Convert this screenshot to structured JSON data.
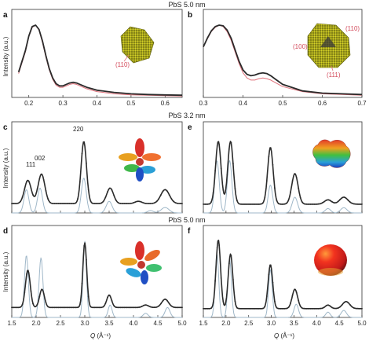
{
  "figure": {
    "row_titles": [
      "PbS 5.0 nm",
      "PbS 3.2 nm",
      "PbS 5.0 nm"
    ],
    "y_label": "Intensity (a.u.)",
    "x_label": "Q (Å⁻¹)",
    "x_label_italic": "Q",
    "x_label_rest": " (Å⁻¹)",
    "colors": {
      "experiment": "#2b2b2b",
      "model_top": "#e0707a",
      "model_bottom": "#9fb7c8",
      "inset_red": "#d34a5b"
    }
  },
  "chart_data": [
    {
      "panel": "a",
      "type": "line",
      "title": "",
      "xlabel": "",
      "ylabel": "Intensity (a.u.)",
      "xlim": [
        0.15,
        0.65
      ],
      "x_ticks": [
        0.2,
        0.3,
        0.4,
        0.5,
        0.6
      ],
      "x_tick_labels": [
        "0.2",
        "0.3",
        "0.4",
        "0.5",
        "0.6"
      ],
      "inset_labels": [
        "(110)"
      ],
      "series": [
        {
          "role": "experiment",
          "color": "#2b2b2b",
          "x": [
            0.17,
            0.19,
            0.2,
            0.21,
            0.22,
            0.23,
            0.24,
            0.25,
            0.26,
            0.27,
            0.28,
            0.29,
            0.3,
            0.31,
            0.32,
            0.33,
            0.34,
            0.35,
            0.37,
            0.4,
            0.45,
            0.5,
            0.55,
            0.6,
            0.65
          ],
          "y": [
            0.35,
            0.65,
            0.85,
            0.98,
            1.0,
            0.94,
            0.78,
            0.58,
            0.4,
            0.27,
            0.19,
            0.16,
            0.16,
            0.18,
            0.2,
            0.21,
            0.2,
            0.18,
            0.14,
            0.1,
            0.07,
            0.05,
            0.04,
            0.035,
            0.03
          ]
        },
        {
          "role": "model",
          "color": "#e0707a",
          "x": [
            0.17,
            0.19,
            0.2,
            0.21,
            0.22,
            0.23,
            0.24,
            0.25,
            0.26,
            0.27,
            0.28,
            0.29,
            0.3,
            0.31,
            0.32,
            0.33,
            0.34,
            0.35,
            0.37,
            0.4,
            0.45,
            0.5,
            0.55,
            0.6,
            0.65
          ],
          "y": [
            0.33,
            0.63,
            0.84,
            0.97,
            1.0,
            0.93,
            0.76,
            0.56,
            0.38,
            0.25,
            0.17,
            0.14,
            0.14,
            0.16,
            0.18,
            0.19,
            0.18,
            0.16,
            0.12,
            0.08,
            0.05,
            0.035,
            0.03,
            0.025,
            0.02
          ]
        }
      ]
    },
    {
      "panel": "b",
      "type": "line",
      "title": "",
      "xlabel": "",
      "ylabel": "",
      "xlim": [
        0.3,
        0.7
      ],
      "x_ticks": [
        0.3,
        0.4,
        0.5,
        0.6,
        0.7
      ],
      "x_tick_labels": [
        "0.3",
        "0.4",
        "0.5",
        "0.6",
        "0.7"
      ],
      "inset_labels": [
        "(110)",
        "(100)",
        "(111)"
      ],
      "series": [
        {
          "role": "experiment",
          "color": "#2b2b2b",
          "x": [
            0.3,
            0.31,
            0.32,
            0.33,
            0.34,
            0.35,
            0.36,
            0.37,
            0.38,
            0.39,
            0.4,
            0.41,
            0.42,
            0.43,
            0.44,
            0.45,
            0.46,
            0.47,
            0.48,
            0.5,
            0.55,
            0.6,
            0.65,
            0.7
          ],
          "y": [
            0.7,
            0.82,
            0.92,
            0.98,
            1.0,
            0.99,
            0.93,
            0.82,
            0.66,
            0.5,
            0.38,
            0.32,
            0.3,
            0.31,
            0.33,
            0.34,
            0.33,
            0.3,
            0.26,
            0.18,
            0.09,
            0.06,
            0.05,
            0.04
          ]
        },
        {
          "role": "model",
          "color": "#e0707a",
          "x": [
            0.3,
            0.31,
            0.32,
            0.33,
            0.34,
            0.35,
            0.36,
            0.37,
            0.38,
            0.39,
            0.4,
            0.41,
            0.42,
            0.43,
            0.44,
            0.45,
            0.46,
            0.47,
            0.48,
            0.5,
            0.55,
            0.6,
            0.65,
            0.7
          ],
          "y": [
            0.7,
            0.81,
            0.91,
            0.97,
            1.0,
            0.98,
            0.91,
            0.79,
            0.63,
            0.47,
            0.34,
            0.27,
            0.24,
            0.24,
            0.26,
            0.27,
            0.26,
            0.24,
            0.21,
            0.15,
            0.08,
            0.05,
            0.04,
            0.03
          ]
        }
      ]
    },
    {
      "panel": "c",
      "type": "line",
      "title": "",
      "xlabel": "",
      "ylabel": "Intensity (a.u.)",
      "xlim": [
        1.5,
        5.0
      ],
      "x_ticks": [
        1.5,
        2.0,
        2.5,
        3.0,
        3.5,
        4.0,
        4.5,
        5.0
      ],
      "x_tick_labels": [],
      "peak_labels": [
        {
          "text": "111",
          "x": 1.72
        },
        {
          "text": "002",
          "x": 2.1
        },
        {
          "text": "220",
          "x": 3.0
        }
      ],
      "series": [
        {
          "role": "experiment",
          "color": "#2b2b2b",
          "baseline": 0.12,
          "peaks": [
            {
              "c": 1.83,
              "h": 0.3,
              "w": 0.07
            },
            {
              "c": 2.11,
              "h": 0.38,
              "w": 0.07
            },
            {
              "c": 2.98,
              "h": 0.8,
              "w": 0.055
            },
            {
              "c": 3.52,
              "h": 0.2,
              "w": 0.07
            },
            {
              "c": 4.1,
              "h": 0.03,
              "w": 0.07
            },
            {
              "c": 4.65,
              "h": 0.18,
              "w": 0.09
            }
          ]
        },
        {
          "role": "model",
          "color": "#9fb7c8",
          "baseline": 0.0,
          "peaks": [
            {
              "c": 1.8,
              "h": 0.3,
              "w": 0.05
            },
            {
              "c": 2.08,
              "h": 0.32,
              "w": 0.05
            },
            {
              "c": 2.98,
              "h": 0.45,
              "w": 0.05
            },
            {
              "c": 3.5,
              "h": 0.15,
              "w": 0.06
            },
            {
              "c": 4.35,
              "h": 0.03,
              "w": 0.06
            },
            {
              "c": 4.65,
              "h": 0.07,
              "w": 0.08
            }
          ]
        }
      ]
    },
    {
      "panel": "e",
      "type": "line",
      "title": "",
      "xlabel": "",
      "ylabel": "",
      "xlim": [
        1.5,
        5.0
      ],
      "x_ticks": [
        1.5,
        2.0,
        2.5,
        3.0,
        3.5,
        4.0,
        4.5,
        5.0
      ],
      "x_tick_labels": [],
      "series": [
        {
          "role": "experiment",
          "color": "#2b2b2b",
          "baseline": 0.1,
          "peaks": [
            {
              "c": 1.83,
              "h": 0.72,
              "w": 0.06
            },
            {
              "c": 2.1,
              "h": 0.72,
              "w": 0.06
            },
            {
              "c": 2.98,
              "h": 0.65,
              "w": 0.06
            },
            {
              "c": 3.52,
              "h": 0.35,
              "w": 0.07
            },
            {
              "c": 4.25,
              "h": 0.05,
              "w": 0.08
            },
            {
              "c": 4.6,
              "h": 0.08,
              "w": 0.09
            }
          ]
        },
        {
          "role": "model",
          "color": "#9fb7c8",
          "baseline": 0.0,
          "peaks": [
            {
              "c": 1.8,
              "h": 0.6,
              "w": 0.05
            },
            {
              "c": 2.08,
              "h": 0.6,
              "w": 0.05
            },
            {
              "c": 2.98,
              "h": 0.32,
              "w": 0.05
            },
            {
              "c": 3.52,
              "h": 0.18,
              "w": 0.06
            },
            {
              "c": 4.25,
              "h": 0.05,
              "w": 0.06
            },
            {
              "c": 4.6,
              "h": 0.06,
              "w": 0.07
            }
          ]
        }
      ]
    },
    {
      "panel": "d",
      "type": "line",
      "title": "",
      "xlabel": "Q (Å⁻¹)",
      "ylabel": "Intensity (a.u.)",
      "xlim": [
        1.5,
        5.0
      ],
      "x_ticks": [
        1.5,
        2.0,
        2.5,
        3.0,
        3.5,
        4.0,
        4.5,
        5.0
      ],
      "x_tick_labels": [
        "1.5",
        "2.0",
        "2.5",
        "3.0",
        "3.5",
        "4.0",
        "4.5",
        "5.0"
      ],
      "series": [
        {
          "role": "experiment",
          "color": "#2b2b2b",
          "baseline": 0.12,
          "peaks": [
            {
              "c": 1.83,
              "h": 0.45,
              "w": 0.05
            },
            {
              "c": 2.12,
              "h": 0.22,
              "w": 0.05
            },
            {
              "c": 3.0,
              "h": 0.78,
              "w": 0.04
            },
            {
              "c": 3.5,
              "h": 0.15,
              "w": 0.05
            },
            {
              "c": 4.25,
              "h": 0.03,
              "w": 0.06
            },
            {
              "c": 4.65,
              "h": 0.1,
              "w": 0.07
            }
          ]
        },
        {
          "role": "model",
          "color": "#9fb7c8",
          "baseline": 0.0,
          "peaks": [
            {
              "c": 1.8,
              "h": 0.75,
              "w": 0.04
            },
            {
              "c": 2.1,
              "h": 0.72,
              "w": 0.04
            },
            {
              "c": 3.0,
              "h": 0.92,
              "w": 0.035
            },
            {
              "c": 3.52,
              "h": 0.15,
              "w": 0.04
            },
            {
              "c": 4.25,
              "h": 0.05,
              "w": 0.05
            },
            {
              "c": 4.7,
              "h": 0.12,
              "w": 0.05
            }
          ]
        }
      ]
    },
    {
      "panel": "f",
      "type": "line",
      "title": "",
      "xlabel": "Q (Å⁻¹)",
      "ylabel": "",
      "xlim": [
        1.5,
        5.0
      ],
      "x_ticks": [
        1.5,
        2.0,
        2.5,
        3.0,
        3.5,
        4.0,
        4.5,
        5.0
      ],
      "x_tick_labels": [
        "1.5",
        "2.0",
        "2.5",
        "3.0",
        "3.5",
        "4.0",
        "4.5",
        "5.0"
      ],
      "series": [
        {
          "role": "experiment",
          "color": "#2b2b2b",
          "baseline": 0.1,
          "peaks": [
            {
              "c": 1.83,
              "h": 0.78,
              "w": 0.05
            },
            {
              "c": 2.1,
              "h": 0.62,
              "w": 0.05
            },
            {
              "c": 2.98,
              "h": 0.5,
              "w": 0.05
            },
            {
              "c": 3.52,
              "h": 0.22,
              "w": 0.06
            },
            {
              "c": 4.25,
              "h": 0.04,
              "w": 0.06
            },
            {
              "c": 4.65,
              "h": 0.08,
              "w": 0.08
            }
          ]
        },
        {
          "role": "model",
          "color": "#9fb7c8",
          "baseline": 0.0,
          "peaks": [
            {
              "c": 1.8,
              "h": 0.72,
              "w": 0.04
            },
            {
              "c": 2.08,
              "h": 0.66,
              "w": 0.04
            },
            {
              "c": 2.98,
              "h": 0.55,
              "w": 0.04
            },
            {
              "c": 3.55,
              "h": 0.15,
              "w": 0.05
            },
            {
              "c": 4.25,
              "h": 0.06,
              "w": 0.05
            },
            {
              "c": 4.6,
              "h": 0.08,
              "w": 0.06
            }
          ]
        }
      ]
    }
  ]
}
